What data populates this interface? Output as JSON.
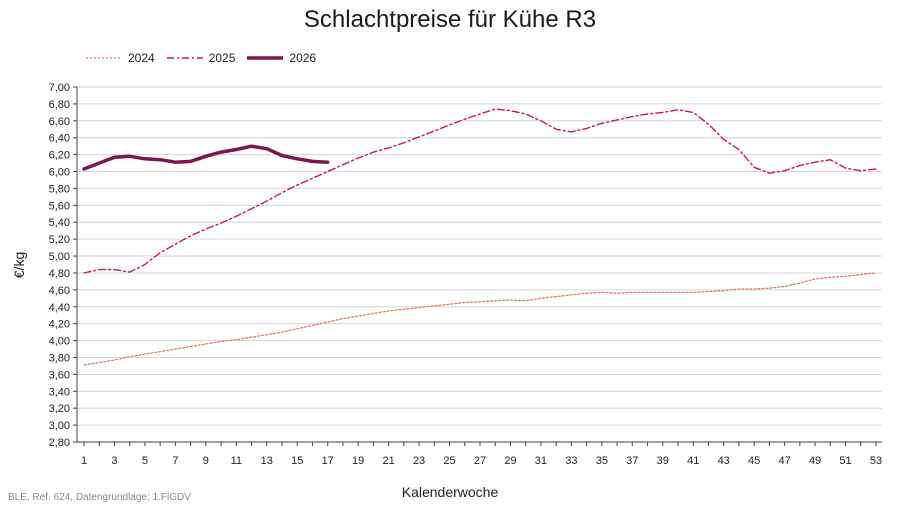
{
  "chart_data": {
    "type": "line",
    "title": "Schlachtpreise für Kühe R3",
    "xlabel": "Kalenderwoche",
    "ylabel": "€/kg",
    "xlim": [
      1,
      53
    ],
    "ylim": [
      2.8,
      7.0
    ],
    "ytick_step": 0.2,
    "xticks": [
      1,
      3,
      5,
      7,
      9,
      11,
      13,
      15,
      17,
      19,
      21,
      23,
      25,
      27,
      29,
      31,
      33,
      35,
      37,
      39,
      41,
      43,
      45,
      47,
      49,
      51,
      53
    ],
    "grid": true,
    "legend_position": "top-left",
    "series": [
      {
        "name": "2024",
        "color": "#e8786b",
        "style": "dotted",
        "x": [
          1,
          2,
          3,
          4,
          5,
          6,
          7,
          8,
          9,
          10,
          11,
          12,
          13,
          14,
          15,
          16,
          17,
          18,
          19,
          20,
          21,
          22,
          23,
          24,
          25,
          26,
          27,
          28,
          29,
          30,
          31,
          32,
          33,
          34,
          35,
          36,
          37,
          38,
          39,
          40,
          41,
          42,
          43,
          44,
          45,
          46,
          47,
          48,
          49,
          50,
          51,
          52,
          53
        ],
        "values": [
          3.71,
          3.74,
          3.77,
          3.81,
          3.84,
          3.87,
          3.9,
          3.93,
          3.96,
          3.99,
          4.01,
          4.04,
          4.07,
          4.1,
          4.14,
          4.18,
          4.22,
          4.26,
          4.29,
          4.32,
          4.35,
          4.37,
          4.39,
          4.41,
          4.43,
          4.45,
          4.46,
          4.47,
          4.48,
          4.47,
          4.5,
          4.52,
          4.54,
          4.56,
          4.57,
          4.56,
          4.57,
          4.57,
          4.57,
          4.57,
          4.57,
          4.58,
          4.59,
          4.61,
          4.61,
          4.62,
          4.64,
          4.68,
          4.73,
          4.75,
          4.76,
          4.78,
          4.8
        ]
      },
      {
        "name": "2025",
        "color": "#c2185b",
        "style": "dashdot",
        "x": [
          1,
          2,
          3,
          4,
          5,
          6,
          7,
          8,
          9,
          10,
          11,
          12,
          13,
          14,
          15,
          16,
          17,
          18,
          19,
          20,
          21,
          22,
          23,
          24,
          25,
          26,
          27,
          28,
          29,
          30,
          31,
          32,
          33,
          34,
          35,
          36,
          37,
          38,
          39,
          40,
          41,
          42,
          43,
          44,
          45,
          46,
          47,
          48,
          49,
          50,
          51,
          52,
          53
        ],
        "values": [
          4.8,
          4.84,
          4.84,
          4.81,
          4.9,
          5.04,
          5.14,
          5.24,
          5.32,
          5.39,
          5.47,
          5.56,
          5.65,
          5.75,
          5.84,
          5.92,
          6.0,
          6.08,
          6.16,
          6.23,
          6.28,
          6.34,
          6.41,
          6.48,
          6.55,
          6.62,
          6.68,
          6.74,
          6.72,
          6.68,
          6.6,
          6.5,
          6.47,
          6.51,
          6.57,
          6.61,
          6.65,
          6.68,
          6.7,
          6.73,
          6.7,
          6.56,
          6.38,
          6.26,
          6.05,
          5.98,
          6.01,
          6.07,
          6.11,
          6.14,
          6.04,
          6.01,
          6.03
        ]
      },
      {
        "name": "2026",
        "color": "#7d1550",
        "style": "solid",
        "x": [
          1,
          2,
          3,
          4,
          5,
          6,
          7,
          8,
          9,
          10,
          11,
          12,
          13,
          14,
          15,
          16,
          17
        ],
        "values": [
          6.03,
          6.1,
          6.17,
          6.18,
          6.15,
          6.14,
          6.11,
          6.12,
          6.18,
          6.23,
          6.26,
          6.3,
          6.27,
          6.19,
          6.15,
          6.12,
          6.11
        ]
      }
    ]
  },
  "source": "BLE, Ref. 624, Datengrundlage: 1.FlGDV"
}
